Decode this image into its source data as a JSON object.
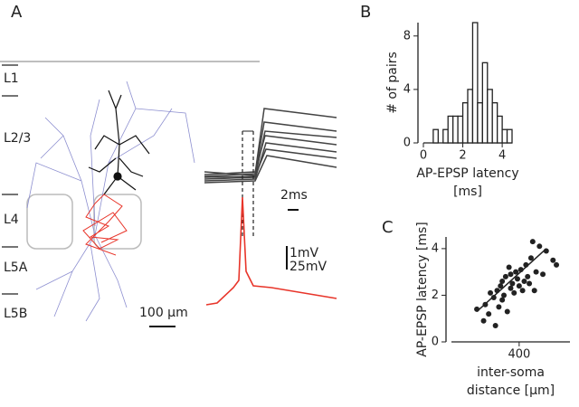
{
  "panel_labels": [
    "A",
    "B",
    "C"
  ],
  "layers": [
    "L1",
    "L2/3",
    "L4",
    "L5A",
    "L5B"
  ],
  "scale_bars": {
    "morphology": "100 µm",
    "time": "2ms",
    "epsp": "1mV",
    "ap": "25mV"
  },
  "chart_data": [
    {
      "type": "histogram",
      "ylabel": "# of pairs",
      "xlabel": [
        "AP-EPSP latency",
        "[ms]"
      ],
      "bins": [
        0.5,
        0.75,
        1,
        1.25,
        1.5,
        1.75,
        2,
        2.25,
        2.5,
        2.75,
        3,
        3.25,
        3.5,
        3.75,
        4,
        4.25,
        4.5
      ],
      "values": [
        1,
        0,
        1,
        2,
        2,
        2,
        3,
        4,
        9,
        3,
        6,
        4,
        3,
        2,
        1,
        1
      ],
      "color": "#ffffff",
      "xlim": [
        0,
        4.5
      ],
      "xticks": [
        0,
        2,
        4
      ],
      "ylim": [
        0,
        9
      ],
      "yticks": [
        0,
        4,
        8
      ]
    },
    {
      "type": "scatter",
      "ylabel": "AP-EPSP latency [ms]",
      "xlabel": [
        "inter-soma",
        "distance [µm]"
      ],
      "x": [
        150,
        190,
        200,
        220,
        230,
        250,
        260,
        270,
        280,
        290,
        300,
        300,
        310,
        320,
        330,
        340,
        350,
        350,
        360,
        370,
        380,
        390,
        400,
        410,
        420,
        430,
        440,
        450,
        460,
        470,
        480,
        490,
        500,
        520,
        540,
        560,
        600,
        620
      ],
      "y": [
        1.4,
        0.9,
        1.6,
        1.2,
        2.1,
        1.9,
        0.7,
        2.2,
        1.5,
        2.4,
        2.6,
        1.8,
        2.0,
        2.8,
        1.3,
        3.2,
        2.3,
        2.9,
        2.5,
        2.1,
        3.0,
        2.7,
        2.4,
        3.1,
        2.2,
        2.6,
        3.3,
        2.8,
        2.5,
        3.6,
        4.3,
        2.2,
        3.0,
        4.1,
        2.9,
        3.9,
        3.5,
        3.3
      ],
      "fit": {
        "x": [
          150,
          560
        ],
        "y": [
          1.3,
          4.0
        ]
      },
      "color": "#222222",
      "xlim": [
        0,
        700
      ],
      "xticks": [
        400
      ],
      "ylim": [
        0,
        4.5
      ],
      "yticks": [
        0,
        2,
        4
      ]
    }
  ]
}
